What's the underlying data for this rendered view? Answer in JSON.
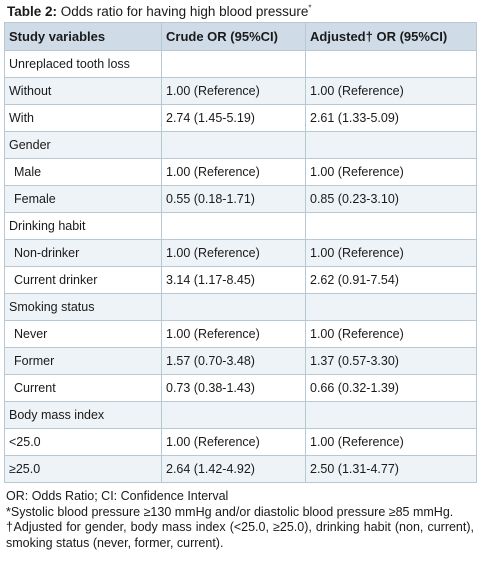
{
  "caption": {
    "label": "Table 2:",
    "text": " Odds ratio for having high blood pressure",
    "mark": "*"
  },
  "columns": [
    "Study variables",
    "Crude OR (95%CI)",
    "Adjusted† OR (95%CI)"
  ],
  "rows": [
    {
      "label": "Unreplaced tooth loss",
      "crude": "",
      "adjusted": ""
    },
    {
      "label": "Without",
      "crude": "1.00 (Reference)",
      "adjusted": "1.00 (Reference)"
    },
    {
      "label": "With",
      "crude": "2.74 (1.45-5.19)",
      "adjusted": "2.61 (1.33-5.09)"
    },
    {
      "label": "Gender",
      "crude": "",
      "adjusted": ""
    },
    {
      "label": "Male",
      "crude": "1.00 (Reference)",
      "adjusted": "1.00 (Reference)"
    },
    {
      "label": "Female",
      "crude": "0.55 (0.18-1.71)",
      "adjusted": "0.85 (0.23-3.10)"
    },
    {
      "label": "Drinking habit",
      "crude": "",
      "adjusted": ""
    },
    {
      "label": "Non-drinker",
      "crude": "1.00 (Reference)",
      "adjusted": "1.00 (Reference)"
    },
    {
      "label": "Current drinker",
      "crude": "3.14 (1.17-8.45)",
      "adjusted": "2.62 (0.91-7.54)"
    },
    {
      "label": "Smoking status",
      "crude": "",
      "adjusted": ""
    },
    {
      "label": "Never",
      "crude": "1.00 (Reference)",
      "adjusted": "1.00 (Reference)"
    },
    {
      "label": "Former",
      "crude": "1.57 (0.70-3.48)",
      "adjusted": "1.37 (0.57-3.30)"
    },
    {
      "label": "Current",
      "crude": "0.73 (0.38-1.43)",
      "adjusted": "0.66 (0.32-1.39)"
    },
    {
      "label": "Body mass index",
      "crude": "",
      "adjusted": ""
    },
    {
      "label": "<25.0",
      "crude": "1.00 (Reference)",
      "adjusted": "1.00 (Reference)"
    },
    {
      "label": "≥25.0",
      "crude": "2.64 (1.42-4.92)",
      "adjusted": "2.50 (1.31-4.77)"
    }
  ],
  "footnotes": {
    "abbrev": "OR: Odds Ratio; CI: Confidence Interval",
    "star": "*Systolic blood pressure ≥130 mmHg and/or diastolic blood pressure ≥85 mmHg.",
    "dagger": "†Adjusted for gender, body mass index (<25.0, ≥25.0), drinking habit (non, current), smoking status (never, former, current)."
  },
  "colors": {
    "header_bg": "#cfdce7",
    "stripe_bg": "#eef3f7",
    "border": "#b9c7d3"
  }
}
